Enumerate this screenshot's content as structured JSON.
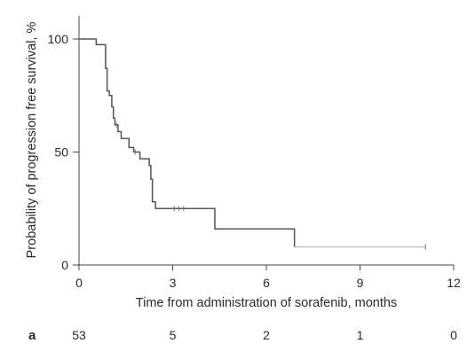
{
  "chart_data": {
    "type": "line",
    "subtype": "kaplan-meier",
    "panel_label": "a",
    "xlabel": "Time from administration of sorafenib, months",
    "ylabel": "Probability of progression free survival, %",
    "xlim": [
      0,
      12
    ],
    "ylim": [
      0,
      100
    ],
    "x_ticks": [
      0,
      3,
      6,
      9,
      12
    ],
    "y_ticks": [
      0,
      50,
      100
    ],
    "grid": false,
    "line_color": "#555555",
    "censor_color": "#bdbdbd",
    "series": [
      {
        "steps": [
          {
            "t": 0.0,
            "s": 100
          },
          {
            "t": 0.55,
            "s": 97.5
          },
          {
            "t": 0.85,
            "s": 87
          },
          {
            "t": 0.9,
            "s": 77
          },
          {
            "t": 0.97,
            "s": 75
          },
          {
            "t": 1.05,
            "s": 70
          },
          {
            "t": 1.1,
            "s": 65
          },
          {
            "t": 1.15,
            "s": 62
          },
          {
            "t": 1.25,
            "s": 59
          },
          {
            "t": 1.35,
            "s": 56
          },
          {
            "t": 1.6,
            "s": 52
          },
          {
            "t": 1.75,
            "s": 50
          },
          {
            "t": 1.95,
            "s": 47
          },
          {
            "t": 2.25,
            "s": 44
          },
          {
            "t": 2.3,
            "s": 38
          },
          {
            "t": 2.35,
            "s": 28
          },
          {
            "t": 2.45,
            "s": 25
          },
          {
            "t": 4.35,
            "s": 16
          },
          {
            "t": 6.9,
            "s": 8
          }
        ],
        "end_t": 11.1,
        "censored": [
          {
            "t": 1.2,
            "s": 62
          },
          {
            "t": 1.8,
            "s": 50
          },
          {
            "t": 3.05,
            "s": 25
          },
          {
            "t": 3.2,
            "s": 25
          },
          {
            "t": 3.35,
            "s": 25
          },
          {
            "t": 11.1,
            "s": 8
          }
        ]
      }
    ],
    "risk_table": {
      "times": [
        0,
        3,
        6,
        9,
        12
      ],
      "counts": [
        "53",
        "5",
        "2",
        "1",
        "0"
      ]
    }
  }
}
